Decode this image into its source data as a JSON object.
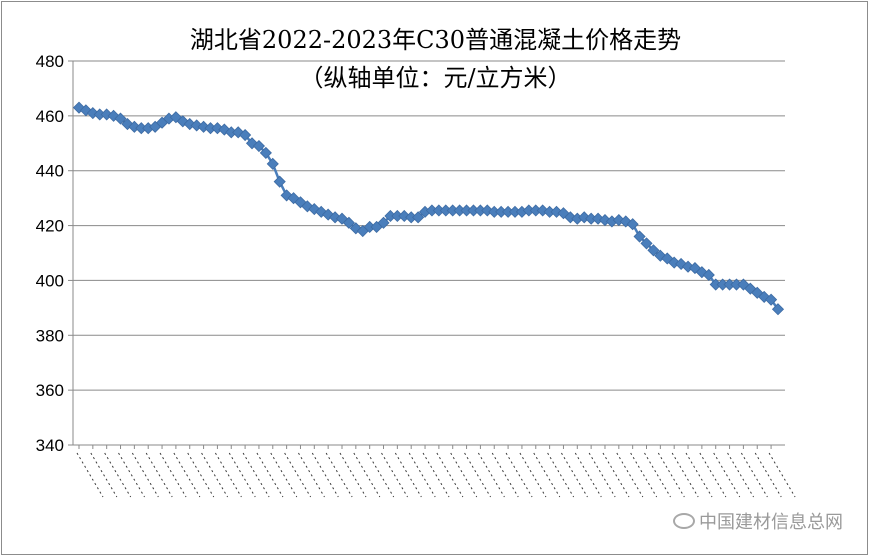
{
  "chart_data": {
    "type": "line",
    "title": "湖北省2022-2023年C30普通混凝土价格走势",
    "subtitle": "（纵轴单位：元/立方米）",
    "ylim": [
      340,
      480
    ],
    "yticks": [
      340,
      360,
      380,
      400,
      420,
      440,
      460,
      480
    ],
    "grid": true,
    "series_color": "#4a7ebb",
    "marker": "diamond",
    "series": [
      {
        "values": [
          463,
          462,
          461,
          460.5,
          460.5,
          460,
          459,
          457,
          456,
          455.5,
          455.5,
          456,
          457.5,
          459,
          459.5,
          458,
          457,
          456.5,
          456,
          455.5,
          455.5,
          455,
          454,
          454,
          453,
          450,
          449,
          446.5,
          442.5,
          436,
          431,
          430,
          428.5,
          427,
          426,
          425,
          424,
          423,
          422.5,
          421,
          419,
          418,
          419.5,
          419.5,
          421,
          423.5,
          423.5,
          423.5,
          423,
          423,
          425,
          425.5,
          425.5,
          425.5,
          425.5,
          425.5,
          425.5,
          425.5,
          425.5,
          425.5,
          425,
          425,
          425,
          425,
          425,
          425.5,
          425.5,
          425.5,
          425,
          425,
          424.5,
          423,
          422.5,
          423,
          422.5,
          422.5,
          422,
          421.5,
          422,
          421.5,
          420.5,
          416,
          413.5,
          411,
          409,
          408,
          406.5,
          406,
          405,
          404.5,
          403,
          402,
          398.5,
          398.5,
          398.5,
          398.5,
          398.5,
          397,
          395.5,
          394,
          393,
          389.5
        ]
      }
    ]
  },
  "watermark": "中国建材信息总网"
}
